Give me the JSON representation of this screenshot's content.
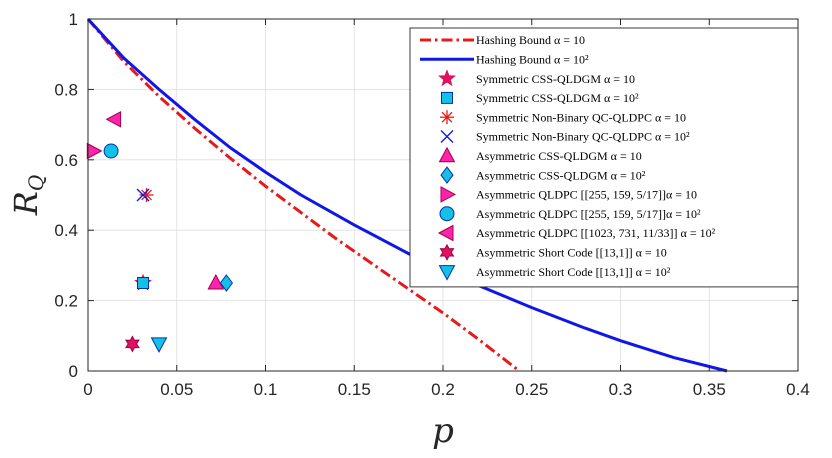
{
  "chart_data": {
    "type": "line",
    "xlabel": "p",
    "ylabel": "R",
    "ylabel_sub": "Q",
    "xlim": [
      0,
      0.4
    ],
    "ylim": [
      0,
      1
    ],
    "xticks": [
      0,
      0.05,
      0.1,
      0.15,
      0.2,
      0.25,
      0.3,
      0.35,
      0.4
    ],
    "xtick_labels": [
      "0",
      "0.05",
      "0.1",
      "0.15",
      "0.2",
      "0.25",
      "0.3",
      "0.35",
      "0.4"
    ],
    "yticks": [
      0,
      0.2,
      0.4,
      0.6,
      0.8,
      1
    ],
    "ytick_labels": [
      "0",
      "0.2",
      "0.4",
      "0.6",
      "0.8",
      "1"
    ],
    "grid": true,
    "legend_position": "top-right",
    "curves": [
      {
        "name": "Hashing Bound α = 10",
        "color": "#e8191a",
        "style": "dash-dot",
        "x": [
          0,
          0.01,
          0.02,
          0.04,
          0.06,
          0.08,
          0.1,
          0.12,
          0.14,
          0.16,
          0.18,
          0.2,
          0.22,
          0.243
        ],
        "y": [
          1,
          0.94,
          0.88,
          0.78,
          0.69,
          0.605,
          0.525,
          0.45,
          0.375,
          0.305,
          0.235,
          0.165,
          0.09,
          0
        ]
      },
      {
        "name": "Hashing Bound α = 10²",
        "color": "#0f17e8",
        "style": "solid",
        "x": [
          0,
          0.01,
          0.02,
          0.04,
          0.06,
          0.08,
          0.1,
          0.12,
          0.15,
          0.18,
          0.2,
          0.22,
          0.25,
          0.28,
          0.3,
          0.33,
          0.36
        ],
        "y": [
          1,
          0.945,
          0.89,
          0.8,
          0.715,
          0.635,
          0.565,
          0.5,
          0.415,
          0.335,
          0.288,
          0.243,
          0.18,
          0.122,
          0.086,
          0.038,
          0
        ]
      }
    ],
    "points": [
      {
        "name": "Symmetric CSS-QLDGM α = 10",
        "marker": "star",
        "color": "#e0115f",
        "stroke": "#e0115f",
        "x": 0.031,
        "y": 0.25
      },
      {
        "name": "Symmetric CSS-QLDGM α = 10²",
        "marker": "square",
        "color": "#15c0e8",
        "stroke": "#0033aa",
        "x": 0.031,
        "y": 0.25
      },
      {
        "name": "Symmetric Non-Binary QC-QLDPC α = 10",
        "marker": "asterisk",
        "color": "#e8191a",
        "stroke": "#e8191a",
        "x": 0.033,
        "y": 0.5
      },
      {
        "name": "Symmetric Non-Binary QC-QLDPC α = 10²",
        "marker": "x",
        "color": "#0f17e8",
        "stroke": "#0f17e8",
        "x": 0.031,
        "y": 0.5
      },
      {
        "name": "Asymmetric CSS-QLDGM α = 10",
        "marker": "triangle-up",
        "color": "#ff22aa",
        "stroke": "#a0004d",
        "x": 0.072,
        "y": 0.25
      },
      {
        "name": "Asymmetric CSS-QLDGM α = 10²",
        "marker": "diamond",
        "color": "#15c0e8",
        "stroke": "#0033aa",
        "x": 0.078,
        "y": 0.25
      },
      {
        "name": "Asymmetric QLDPC [[255, 159, 5/17]] α = 10",
        "marker": "triangle-right",
        "color": "#ff22aa",
        "stroke": "#a0004d",
        "x": 0.003,
        "y": 0.625
      },
      {
        "name": "Asymmetric QLDPC [[255, 159, 5/17]] α = 10²",
        "marker": "circle",
        "color": "#15c0e8",
        "stroke": "#0033aa",
        "x": 0.013,
        "y": 0.625
      },
      {
        "name": "Asymmetric QLDPC [[1023, 731, 11/33]] α = 10²",
        "marker": "triangle-left",
        "color": "#ff22aa",
        "stroke": "#a0004d",
        "x": 0.015,
        "y": 0.715
      },
      {
        "name": "Asymmetric Short Code [[13,1]] α = 10",
        "marker": "hexagram",
        "color": "#e0115f",
        "stroke": "#a0004d",
        "x": 0.025,
        "y": 0.077
      },
      {
        "name": "Asymmetric Short Code [[13,1]] α = 10²",
        "marker": "triangle-down",
        "color": "#15c0e8",
        "stroke": "#0033aa",
        "x": 0.04,
        "y": 0.077
      }
    ],
    "legend": [
      {
        "label": "Hashing Bound α = 10",
        "kind": "line",
        "ref": 0
      },
      {
        "label": "Hashing Bound α = 10²",
        "kind": "line",
        "ref": 1
      },
      {
        "label": "Symmetric CSS-QLDGM α = 10",
        "kind": "point",
        "ref": 0
      },
      {
        "label": "Symmetric CSS-QLDGM α = 10²",
        "kind": "point",
        "ref": 1
      },
      {
        "label": "Symmetric Non-Binary QC-QLDPC α = 10",
        "kind": "point",
        "ref": 2
      },
      {
        "label": "Symmetric Non-Binary QC-QLDPC α = 10²",
        "kind": "point",
        "ref": 3
      },
      {
        "label": "Asymmetric CSS-QLDGM α = 10",
        "kind": "point",
        "ref": 4
      },
      {
        "label": "Asymmetric CSS-QLDGM α = 10²",
        "kind": "point",
        "ref": 5
      },
      {
        "label": "Asymmetric QLDPC [[255, 159, 5/17]]α = 10",
        "kind": "point",
        "ref": 6
      },
      {
        "label": "Asymmetric QLDPC [[255, 159, 5/17]]α = 10²",
        "kind": "point",
        "ref": 7
      },
      {
        "label": "Asymmetric QLDPC [[1023, 731, 11/33]] α = 10²",
        "kind": "point",
        "ref": 8
      },
      {
        "label": "Asymmetric Short Code [[13,1]] α = 10",
        "kind": "point",
        "ref": 9
      },
      {
        "label": "Asymmetric Short Code [[13,1]] α = 10²",
        "kind": "point",
        "ref": 10
      }
    ]
  }
}
